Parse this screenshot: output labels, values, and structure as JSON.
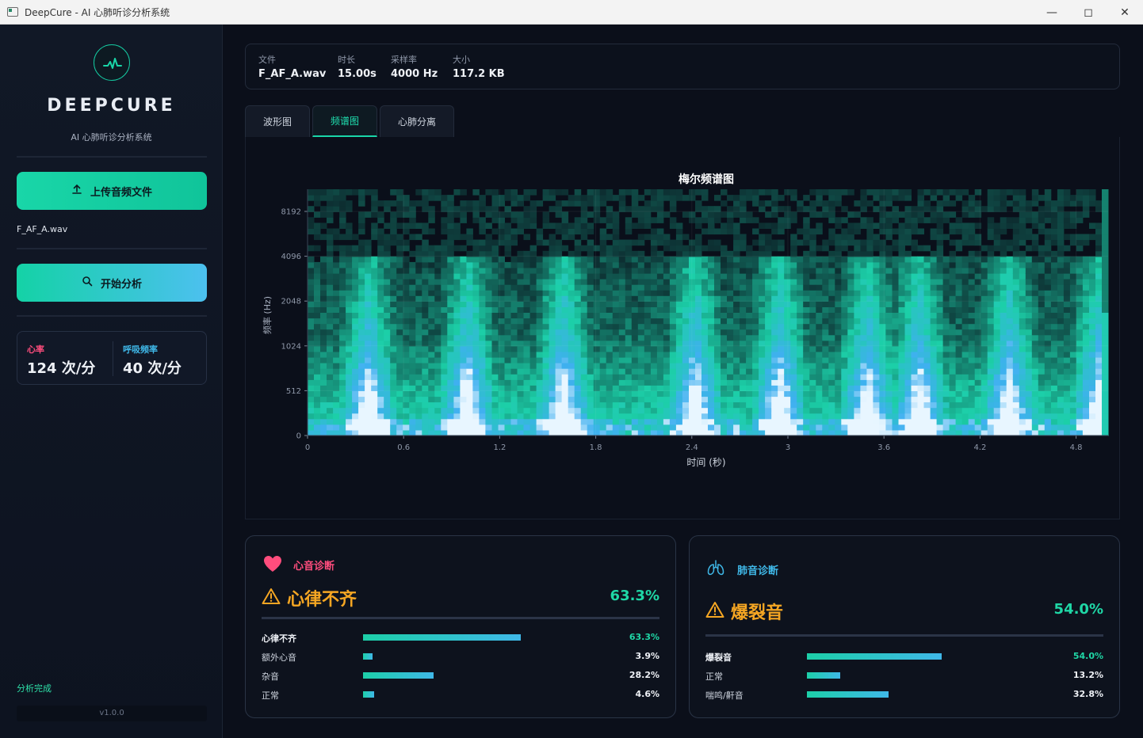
{
  "window": {
    "title": "DeepCure - AI 心肺听诊分析系统"
  },
  "sidebar": {
    "brand": "DEEPCURE",
    "subtitle": "AI 心肺听诊分析系统",
    "upload_label": "上传音频文件",
    "filename": "F_AF_A.wav",
    "analyze_label": "开始分析",
    "heart_rate_label": "心率",
    "heart_rate_value": "124 次/分",
    "resp_rate_label": "呼吸频率",
    "resp_rate_value": "40 次/分",
    "status": "分析完成",
    "version": "v1.0.0"
  },
  "info": {
    "file_label": "文件",
    "file_value": "F_AF_A.wav",
    "duration_label": "时长",
    "duration_value": "15.00s",
    "rate_label": "采样率",
    "rate_value": "4000 Hz",
    "size_label": "大小",
    "size_value": "117.2 KB"
  },
  "tabs": {
    "waveform": "波形图",
    "spectrogram": "频谱图",
    "separation": "心肺分离"
  },
  "chart_data": {
    "type": "heatmap",
    "title": "梅尔频谱图",
    "xlabel": "时间 (秒)",
    "ylabel": "频率 (Hz)",
    "xticks": [
      "0",
      "0.6",
      "1.2",
      "1.8",
      "2.4",
      "3",
      "3.6",
      "4.2",
      "4.8"
    ],
    "yticks": [
      "0",
      "512",
      "1024",
      "2048",
      "4096",
      "8192"
    ],
    "xlim": [
      0,
      5.0
    ],
    "burst_times": [
      0.38,
      1.0,
      1.6,
      2.42,
      2.95,
      3.5,
      3.82,
      4.38,
      4.95
    ],
    "colors": {
      "low": "#0a0f1a",
      "mid": "#1ccfa8",
      "high": "#3fb0f0",
      "peak": "#e8f6ff"
    }
  },
  "heart": {
    "title": "心音诊断",
    "result": "心律不齐",
    "confidence": "63.3%",
    "items": [
      {
        "name": "心律不齐",
        "pct": "63.3%",
        "value": 63.3
      },
      {
        "name": "额外心音",
        "pct": "3.9%",
        "value": 3.9
      },
      {
        "name": "杂音",
        "pct": "28.2%",
        "value": 28.2
      },
      {
        "name": "正常",
        "pct": "4.6%",
        "value": 4.6
      }
    ],
    "color": "#ff4d7d"
  },
  "lung": {
    "title": "肺音诊断",
    "result": "爆裂音",
    "confidence": "54.0%",
    "items": [
      {
        "name": "爆裂音",
        "pct": "54.0%",
        "value": 54.0
      },
      {
        "name": "正常",
        "pct": "13.2%",
        "value": 13.2
      },
      {
        "name": "喘鸣/鼾音",
        "pct": "32.8%",
        "value": 32.8
      }
    ],
    "color": "#3fb8e8"
  }
}
